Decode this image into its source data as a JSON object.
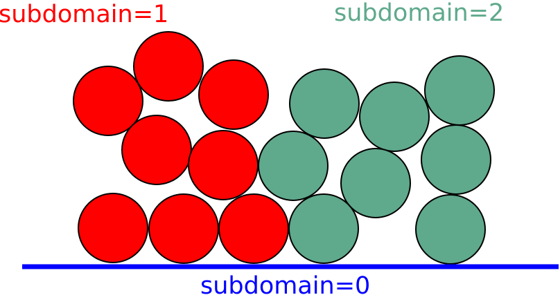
{
  "labels": {
    "subdomain_1": "subdomain=1",
    "subdomain_2": "subdomain=2",
    "subdomain_0": "subdomain=0"
  },
  "colors": {
    "subdomain_1": "#ff0000",
    "subdomain_2": "#5fa98c",
    "subdomain_0": "#0000ff",
    "outline": "#000000"
  }
}
